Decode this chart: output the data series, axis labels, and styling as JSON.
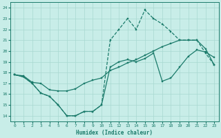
{
  "xlabel": "Humidex (Indice chaleur)",
  "bg_color": "#c8ede8",
  "grid_color": "#a8d8d0",
  "line_color": "#1a7a6a",
  "xlim": [
    -0.5,
    23.5
  ],
  "ylim": [
    13.5,
    24.5
  ],
  "xticks": [
    0,
    1,
    2,
    3,
    4,
    5,
    6,
    7,
    8,
    9,
    10,
    11,
    12,
    13,
    14,
    15,
    16,
    17,
    18,
    19,
    20,
    21,
    22,
    23
  ],
  "yticks": [
    14,
    15,
    16,
    17,
    18,
    19,
    20,
    21,
    22,
    23,
    24
  ],
  "line1_x": [
    0,
    1,
    2,
    3,
    4,
    5,
    6,
    7,
    8,
    9,
    10,
    11,
    12,
    13,
    14,
    15,
    16,
    17,
    18,
    19,
    20,
    21,
    22,
    23
  ],
  "line1_y": [
    17.8,
    17.6,
    17.0,
    16.1,
    15.8,
    15.0,
    14.0,
    14.0,
    14.4,
    14.4,
    15.0,
    18.5,
    19.0,
    19.2,
    19.0,
    19.3,
    19.8,
    17.2,
    17.5,
    18.5,
    19.5,
    20.1,
    19.9,
    19.4
  ],
  "line2_x": [
    0,
    1,
    2,
    3,
    4,
    5,
    6,
    7,
    8,
    9,
    10,
    11,
    12,
    13,
    14,
    15,
    16,
    17,
    18,
    19,
    20,
    21,
    22,
    23
  ],
  "line2_y": [
    17.8,
    17.7,
    17.1,
    17.0,
    16.4,
    16.3,
    16.3,
    16.5,
    17.0,
    17.3,
    17.5,
    18.2,
    18.5,
    18.9,
    19.2,
    19.6,
    20.0,
    20.4,
    20.7,
    21.0,
    21.0,
    21.0,
    20.2,
    18.7
  ],
  "line3_x": [
    0,
    1,
    2,
    3,
    4,
    5,
    6,
    7,
    8,
    9,
    10,
    11,
    12,
    13,
    14,
    15,
    16,
    17,
    18,
    19,
    20,
    21,
    22,
    23
  ],
  "line3_y": [
    17.8,
    17.6,
    17.0,
    16.1,
    15.8,
    15.0,
    14.0,
    14.0,
    14.4,
    14.4,
    15.0,
    21.0,
    22.0,
    23.0,
    22.0,
    23.8,
    23.0,
    22.5,
    21.8,
    21.0,
    21.0,
    21.0,
    19.8,
    18.7
  ]
}
